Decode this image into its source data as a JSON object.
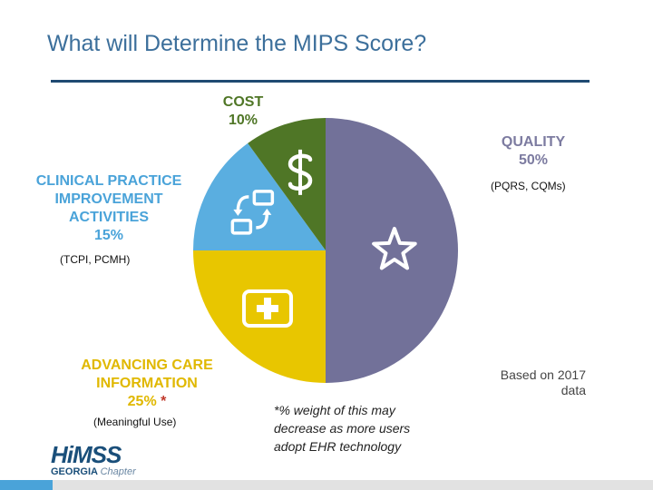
{
  "title": "What will Determine the MIPS Score?",
  "chart_data": {
    "type": "pie",
    "slices": [
      {
        "name": "QUALITY",
        "pct_label": "50%",
        "value": 50,
        "color": "#727199",
        "sub": "(PQRS, CQMs)",
        "icon": "star-icon"
      },
      {
        "name": "ADVANCING CARE INFORMATION",
        "pct_label": "25%",
        "value": 25,
        "color": "#e8c600",
        "sub": "(Meaningful Use)",
        "icon": "medical-cross-icon"
      },
      {
        "name": "CLINICAL PRACTICE IMPROVEMENT ACTIVITIES",
        "pct_label": "15%",
        "value": 15,
        "color": "#5aaee0",
        "sub": "(TCPI, PCMH)",
        "icon": "exchange-arrows-icon"
      },
      {
        "name": "COST",
        "pct_label": "10%",
        "value": 10,
        "color": "#4f7626",
        "sub": "",
        "icon": "dollar-icon"
      }
    ]
  },
  "labels": {
    "cost": {
      "line1": "COST",
      "line2": "10%"
    },
    "quality": {
      "line1": "QUALITY",
      "line2": "50%"
    },
    "cpia": {
      "line1": "CLINICAL PRACTICE",
      "line2": "IMPROVEMENT",
      "line3": "ACTIVITIES",
      "line4": "15%"
    },
    "aci": {
      "line1": "ADVANCING CARE",
      "line2": "INFORMATION",
      "line3": "25%",
      "asterisk": "*"
    }
  },
  "subs": {
    "quality": "(PQRS, CQMs)",
    "cpia": "(TCPI, PCMH)",
    "aci": "(Meaningful Use)"
  },
  "note": {
    "line1": "*% weight of this may",
    "line2": "decrease as more users",
    "line3": "adopt EHR technology"
  },
  "based_on": {
    "line1": "Based on 2017",
    "line2": "data"
  },
  "logo": {
    "main": "HiMSS",
    "sub1": "GEORGIA",
    "sub2": "Chapter"
  },
  "colors": {
    "title": "#3c6f9b",
    "rule": "#1f4a72",
    "quality_label": "#7c7ba0",
    "cost_label": "#4f7626",
    "cpia_label": "#4aa3d9",
    "aci_label": "#e0b800"
  }
}
